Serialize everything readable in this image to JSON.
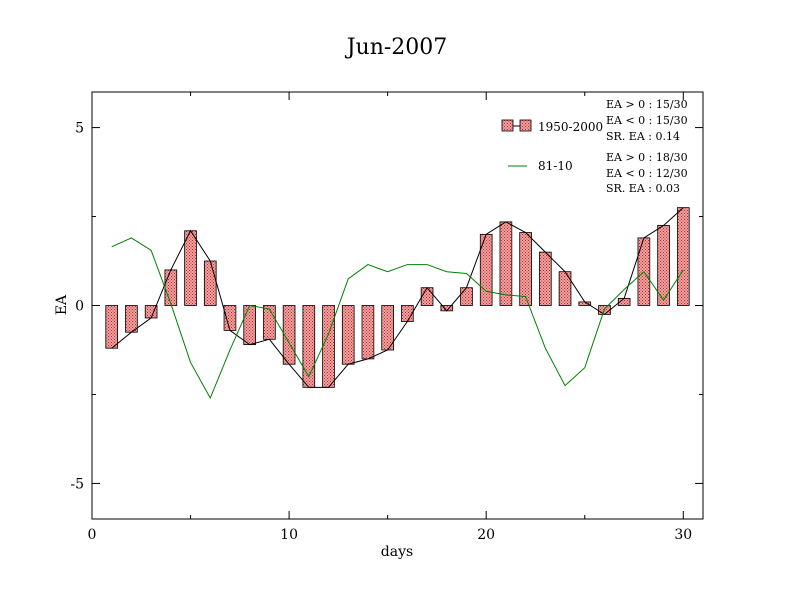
{
  "chart_data": {
    "type": "bar",
    "title": "Jun-2007",
    "xlabel": "days",
    "ylabel": "EA",
    "xlim": [
      0,
      31
    ],
    "ylim": [
      -6,
      6
    ],
    "x_ticks": [
      0,
      10,
      20,
      30
    ],
    "y_ticks": [
      -5,
      0,
      5
    ],
    "x_tick_labels": [
      "0",
      "10",
      "20",
      "30"
    ],
    "y_tick_labels": [
      "-5",
      "0",
      "5"
    ],
    "x": [
      1,
      2,
      3,
      4,
      5,
      6,
      7,
      8,
      9,
      10,
      11,
      12,
      13,
      14,
      15,
      16,
      17,
      18,
      19,
      20,
      21,
      22,
      23,
      24,
      25,
      26,
      27,
      28,
      29,
      30
    ],
    "series": [
      {
        "name": "1950-2000",
        "type": "bar",
        "color": "#f08080",
        "values": [
          -1.2,
          -0.75,
          -0.35,
          1.0,
          2.1,
          1.25,
          -0.7,
          -1.1,
          -0.95,
          -1.65,
          -2.3,
          -2.3,
          -1.65,
          -1.5,
          -1.25,
          -0.45,
          0.5,
          -0.15,
          0.5,
          2.0,
          2.35,
          2.05,
          1.5,
          0.95,
          0.1,
          -0.25,
          0.2,
          1.9,
          2.25,
          2.75
        ]
      },
      {
        "name": "81-10",
        "type": "line",
        "color": "#008000",
        "values": [
          1.65,
          1.9,
          1.55,
          0.05,
          -1.6,
          -2.6,
          -1.25,
          0.0,
          -0.1,
          -1.05,
          -2.0,
          -0.8,
          0.75,
          1.15,
          0.95,
          1.15,
          1.15,
          0.95,
          0.9,
          0.4,
          0.3,
          0.25,
          -1.2,
          -2.25,
          -1.75,
          -0.1,
          0.45,
          0.95,
          0.15,
          1.0
        ]
      }
    ],
    "legend": {
      "placement": "top-right",
      "entries": [
        {
          "label": "1950-2000",
          "stats": [
            "EA > 0 : 15/30",
            "EA < 0 : 15/30",
            "SR. EA :  0.14"
          ]
        },
        {
          "label": "81-10",
          "stats": [
            "EA > 0 : 18/30",
            "EA < 0 : 12/30",
            "SR. EA :  0.03"
          ]
        }
      ]
    },
    "grid": false
  }
}
